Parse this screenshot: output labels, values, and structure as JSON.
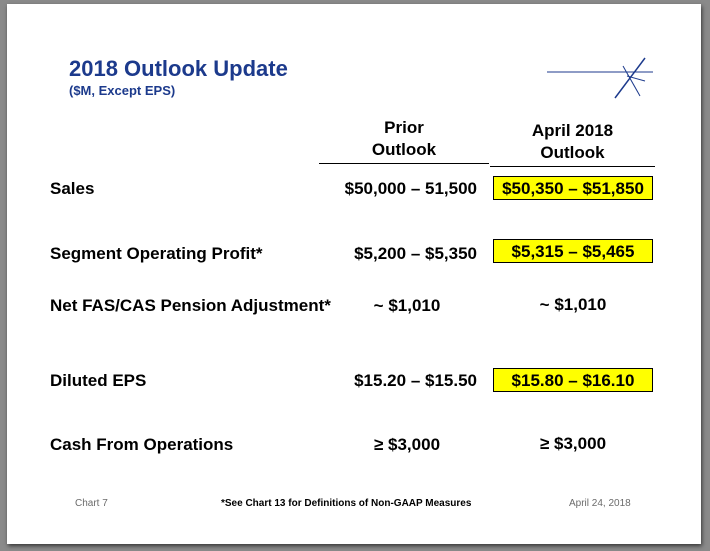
{
  "header": {
    "title": "2018 Outlook Update",
    "subtitle": "($M, Except EPS)"
  },
  "columns": {
    "prior_line1": "Prior",
    "prior_line2": "Outlook",
    "current_line1": "April 2018",
    "current_line2": "Outlook"
  },
  "rows": [
    {
      "label": "Sales",
      "prior": "$50,000 – 51,500",
      "current": "$50,350 – $51,850",
      "highlighted": true
    },
    {
      "label": "Segment Operating Profit*",
      "prior": "$5,200 – $5,350",
      "current": "$5,315 – $5,465",
      "highlighted": true
    },
    {
      "label": "Net FAS/CAS Pension Adjustment*",
      "prior": "~ $1,010",
      "current": "~ $1,010",
      "highlighted": false
    },
    {
      "label": "Diluted EPS",
      "prior": "$15.20 – $15.50",
      "current": "$15.80 – $16.10",
      "highlighted": true
    },
    {
      "label": "Cash From Operations",
      "prior": "≥ $3,000",
      "current": "≥ $3,000",
      "highlighted": false
    }
  ],
  "footer": {
    "chart_number": "Chart 7",
    "note": "*See Chart 13 for Definitions of Non-GAAP Measures",
    "date": "April 24, 2018"
  },
  "colors": {
    "title": "#1c3a8c",
    "highlight": "#ffff00"
  },
  "icons": {
    "logo": "star-logo-icon"
  }
}
